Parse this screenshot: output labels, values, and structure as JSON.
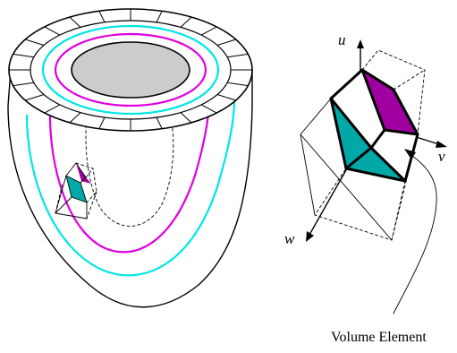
{
  "labels": {
    "axis_u": "u",
    "axis_v": "v",
    "axis_w": "w",
    "caption": "Volume Element"
  },
  "colors": {
    "cyan_layer": "#00e5e5",
    "magenta_layer": "#e000e0",
    "teal_face": "#00a8a8",
    "purple_face": "#a000a0",
    "cavity_fill": "#cccccc"
  },
  "icons": {
    "left_figure": "myocardial-wall-with-embedded-volume-element",
    "right_figure": "enlarged-volume-element-with-local-axes"
  }
}
